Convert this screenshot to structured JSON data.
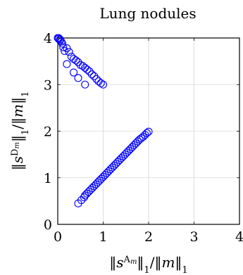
{
  "chart_data": {
    "type": "scatter",
    "title": "Lung nodules",
    "xlabel": "‖s^{A_m}‖₁/‖m‖₁",
    "ylabel": "‖s^{D_m}‖₁/‖m‖₁",
    "xlim": [
      0,
      4
    ],
    "ylim": [
      0,
      4
    ],
    "xticks": [
      "0",
      "1",
      "2",
      "3",
      "4"
    ],
    "yticks": [
      "0",
      "1",
      "2",
      "3",
      "4"
    ],
    "grid": true,
    "marker": "circle-open",
    "color": "#0000ff",
    "series": [
      {
        "x": [
          0.0,
          0.02,
          0.05,
          0.08,
          0.1,
          0.12,
          0.15,
          0.2,
          0.25,
          0.3,
          0.35,
          0.4,
          0.45,
          0.5,
          0.55,
          0.6,
          0.65,
          0.7,
          0.75,
          0.8,
          0.85,
          0.9,
          0.95,
          1.0,
          0.2,
          0.35,
          0.45,
          0.6,
          0.02,
          0.05
        ],
        "y": [
          4.0,
          3.98,
          3.95,
          3.92,
          3.88,
          3.8,
          3.72,
          3.78,
          3.7,
          3.6,
          3.55,
          3.52,
          3.48,
          3.42,
          3.4,
          3.36,
          3.32,
          3.28,
          3.22,
          3.18,
          3.12,
          3.07,
          3.03,
          3.0,
          3.44,
          3.26,
          3.14,
          3.0,
          4.0,
          3.97
        ]
      },
      {
        "x": [
          0.45,
          0.52,
          0.58,
          0.6,
          0.64,
          0.68,
          0.72,
          0.76,
          0.8,
          0.84,
          0.88,
          0.92,
          0.96,
          1.0,
          1.04,
          1.08,
          1.12,
          1.16,
          1.2,
          1.24,
          1.28,
          1.32,
          1.36,
          1.4,
          1.44,
          1.48,
          1.52,
          1.56,
          1.6,
          1.64,
          1.68,
          1.72,
          1.76,
          1.8,
          1.84,
          1.88,
          1.92,
          1.96,
          2.0
        ],
        "y": [
          0.45,
          0.52,
          0.58,
          0.62,
          0.66,
          0.7,
          0.74,
          0.78,
          0.82,
          0.86,
          0.9,
          0.94,
          0.98,
          1.02,
          1.06,
          1.1,
          1.14,
          1.18,
          1.22,
          1.26,
          1.3,
          1.34,
          1.38,
          1.42,
          1.46,
          1.5,
          1.54,
          1.58,
          1.62,
          1.66,
          1.7,
          1.74,
          1.78,
          1.82,
          1.85,
          1.88,
          1.92,
          1.96,
          1.99
        ]
      }
    ]
  }
}
